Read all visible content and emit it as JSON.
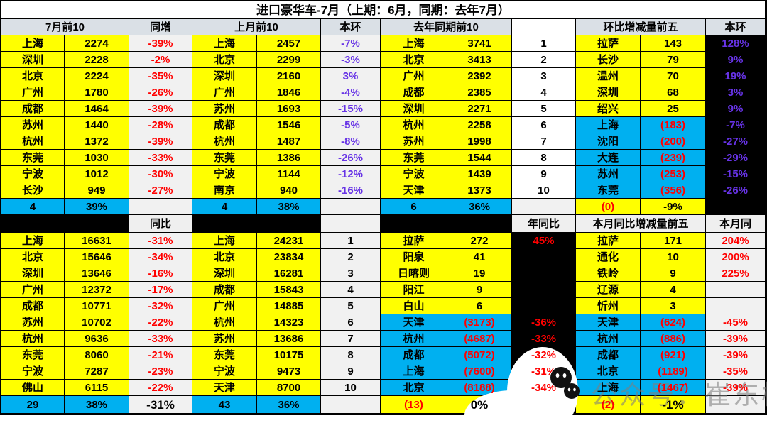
{
  "watermark": {
    "text": "公众号：崔东树",
    "icon": "wechat-icon"
  },
  "colors": {
    "cell_yellow": "#FFFF00",
    "cell_cyan": "#00B0F0",
    "cell_black": "#000000",
    "header_gray": "#DAE0E6",
    "pct_gray": "#F1F1F1",
    "text_red": "#FF0000",
    "text_purple": "#6733E6"
  },
  "chart_data": {
    "type": "table",
    "title": "进口豪华车-7月（上期：6月，同期：去年7月）",
    "header_row_1": [
      "7月前10",
      "同增",
      "上月前10",
      "本环",
      "去年同期前10",
      "",
      "环比增减量前五",
      "本环"
    ],
    "header_row_2": [
      "",
      "同比",
      "",
      "",
      "",
      "年同比",
      "本月同比增减量前五",
      "本月同"
    ],
    "sections_top": [
      {
        "header": "7月前10",
        "extra_header": "同增",
        "cities": [
          "上海",
          "深圳",
          "北京",
          "广州",
          "成都",
          "苏州",
          "杭州",
          "东莞",
          "宁波",
          "长沙"
        ],
        "values": [
          "2274",
          "2228",
          "2224",
          "1780",
          "1464",
          "1440",
          "1372",
          "1030",
          "1012",
          "949"
        ],
        "extra": [
          "-39%",
          "-2%",
          "-35%",
          "-26%",
          "-39%",
          "-28%",
          "-39%",
          "-33%",
          "-30%",
          "-27%"
        ],
        "summary": [
          "4",
          "39%",
          ""
        ]
      },
      {
        "header": "上月前10",
        "extra_header": "本环",
        "cities": [
          "上海",
          "北京",
          "深圳",
          "广州",
          "苏州",
          "成都",
          "杭州",
          "东莞",
          "宁波",
          "南京"
        ],
        "values": [
          "2457",
          "2299",
          "2160",
          "1846",
          "1693",
          "1546",
          "1487",
          "1386",
          "1144",
          "940"
        ],
        "extra": [
          "-7%",
          "-3%",
          "3%",
          "-4%",
          "-15%",
          "-5%",
          "-8%",
          "-26%",
          "-12%",
          "-16%"
        ],
        "summary": [
          "4",
          "38%",
          ""
        ]
      },
      {
        "header": "去年同期前10",
        "extra_header": "",
        "cities": [
          "上海",
          "北京",
          "广州",
          "成都",
          "深圳",
          "杭州",
          "苏州",
          "东莞",
          "宁波",
          "天津"
        ],
        "values": [
          "3741",
          "3413",
          "2392",
          "2385",
          "2271",
          "2258",
          "1998",
          "1544",
          "1439",
          "1373"
        ],
        "extra": [
          "1",
          "2",
          "3",
          "4",
          "5",
          "6",
          "7",
          "8",
          "9",
          "10"
        ],
        "summary": [
          "6",
          "36%",
          ""
        ]
      },
      {
        "header": "环比增减量前五",
        "extra_header": "本环",
        "cities": [
          "拉萨",
          "长沙",
          "温州",
          "深圳",
          "绍兴",
          "上海",
          "沈阳",
          "大连",
          "苏州",
          "东莞"
        ],
        "values": [
          "143",
          "79",
          "70",
          "68",
          "25",
          "(183)",
          "(200)",
          "(239)",
          "(253)",
          "(356)"
        ],
        "extra": [
          "128%",
          "9%",
          "19%",
          "3%",
          "9%",
          "-7%",
          "-27%",
          "-29%",
          "-15%",
          "-26%"
        ],
        "summary": [
          "(0)",
          "-9%",
          ""
        ]
      }
    ],
    "sections_bottom": [
      {
        "header": "",
        "extra_header": "同比",
        "cities": [
          "上海",
          "北京",
          "深圳",
          "广州",
          "成都",
          "苏州",
          "杭州",
          "东莞",
          "宁波",
          "佛山"
        ],
        "values": [
          "16631",
          "15646",
          "13646",
          "12372",
          "10771",
          "10702",
          "9636",
          "8060",
          "7287",
          "6115"
        ],
        "extra": [
          "-31%",
          "-34%",
          "-16%",
          "-17%",
          "-32%",
          "-22%",
          "-33%",
          "-21%",
          "-23%",
          "-22%"
        ],
        "summary": [
          "29",
          "38%",
          "-31%"
        ]
      },
      {
        "header": "",
        "extra_header": "",
        "cities": [
          "上海",
          "北京",
          "深圳",
          "成都",
          "广州",
          "杭州",
          "苏州",
          "东莞",
          "宁波",
          "天津"
        ],
        "values": [
          "24231",
          "23834",
          "16281",
          "15843",
          "14885",
          "14323",
          "13686",
          "10175",
          "9473",
          "8700"
        ],
        "extra": [
          "1",
          "2",
          "3",
          "4",
          "5",
          "6",
          "7",
          "8",
          "9",
          "10"
        ],
        "summary": [
          "43",
          "36%",
          ""
        ]
      },
      {
        "header": "",
        "extra_header": "年同比",
        "cities": [
          "拉萨",
          "阳泉",
          "日喀则",
          "阳江",
          "白山",
          "天津",
          "杭州",
          "成都",
          "上海",
          "北京"
        ],
        "values": [
          "272",
          "41",
          "19",
          "9",
          "6",
          "(3173)",
          "(4687)",
          "(5072)",
          "(7600)",
          "(8188)"
        ],
        "extra": [
          "45%",
          "",
          "",
          "",
          "",
          "-36%",
          "-33%",
          "-32%",
          "-31%",
          "-34%"
        ],
        "summary": [
          "(13)",
          "0%",
          ""
        ]
      },
      {
        "header": "本月同比增减量前五",
        "extra_header": "本月同",
        "cities": [
          "拉萨",
          "通化",
          "铁岭",
          "辽源",
          "忻州",
          "天津",
          "杭州",
          "成都",
          "北京",
          "上海"
        ],
        "values": [
          "171",
          "10",
          "9",
          "4",
          "3",
          "(624)",
          "(886)",
          "(921)",
          "(1189)",
          "(1467)"
        ],
        "extra": [
          "204%",
          "200%",
          "225%",
          "",
          "",
          "-45%",
          "-39%",
          "-39%",
          "-35%",
          "-39%"
        ],
        "summary": [
          "(2)",
          "-1%",
          ""
        ]
      }
    ]
  }
}
